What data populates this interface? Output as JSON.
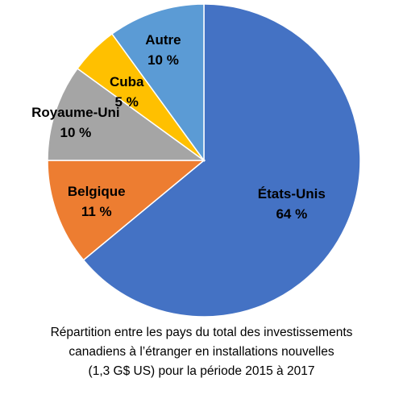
{
  "chart_data": {
    "type": "pie",
    "slices": [
      {
        "label": "États-Unis",
        "value": 64,
        "value_label": "64 %",
        "color": "#4472c4"
      },
      {
        "label": "Belgique",
        "value": 11,
        "value_label": "11 %",
        "color": "#ed7d31"
      },
      {
        "label": "Royaume-Uni",
        "value": 10,
        "value_label": "10 %",
        "color": "#a5a5a5"
      },
      {
        "label": "Cuba",
        "value": 5,
        "value_label": "5 %",
        "color": "#ffc000"
      },
      {
        "label": "Autre",
        "value": 10,
        "value_label": "10 %",
        "color": "#5b9bd5"
      }
    ],
    "unit": "%",
    "legend": "none",
    "labels_on_slices": true
  },
  "caption": {
    "line1": "Répartition entre les pays du total des investissements",
    "line2": "canadiens à l’étranger en installations nouvelles",
    "line3": "(1,3 G$ US) pour la période 2015 à 2017"
  }
}
